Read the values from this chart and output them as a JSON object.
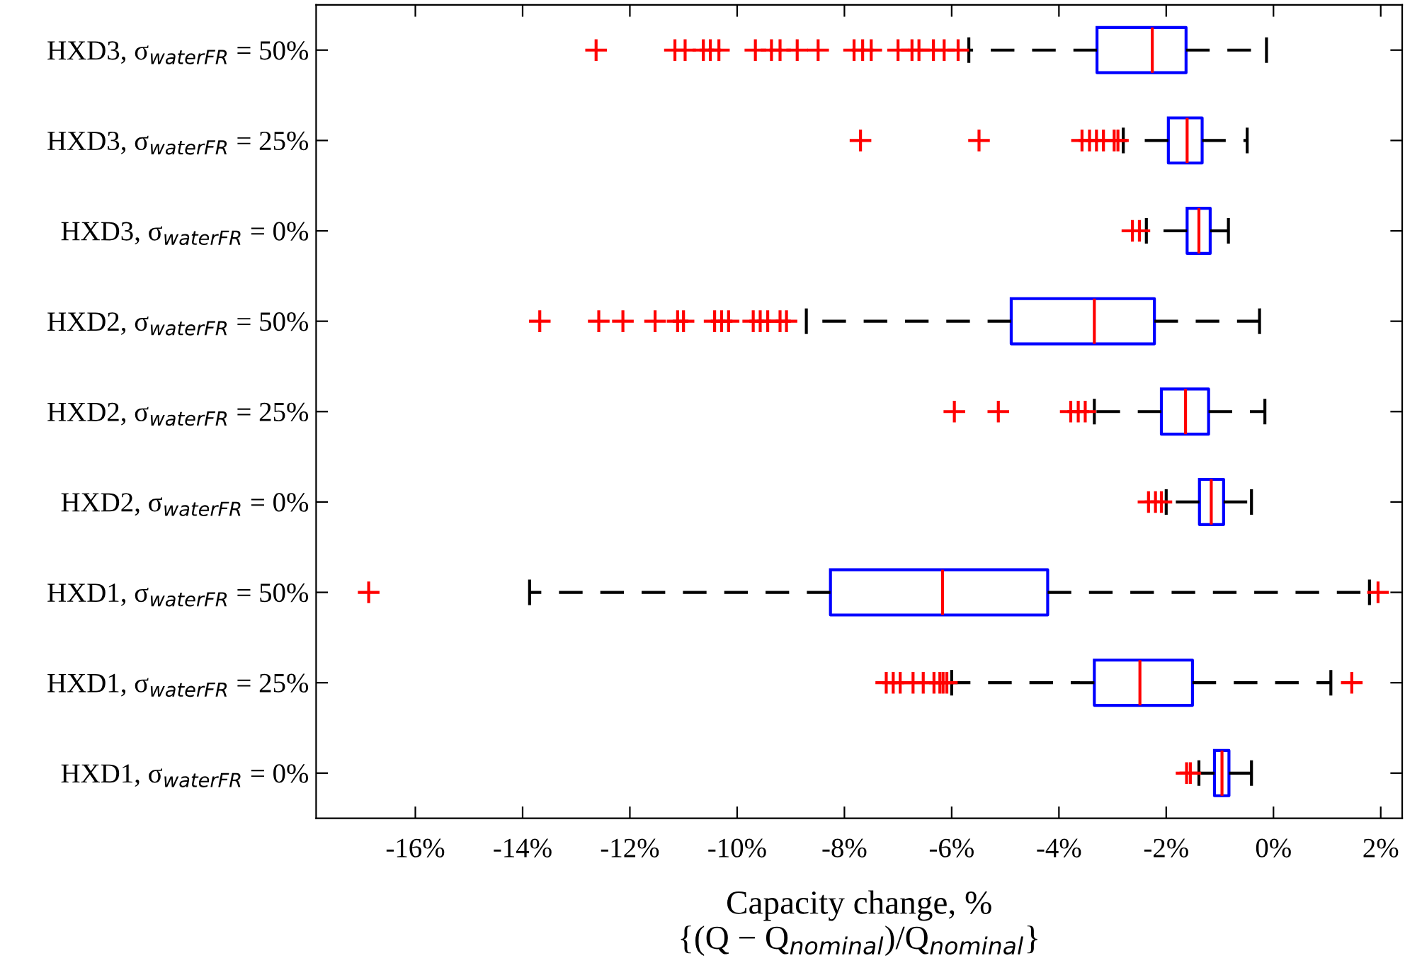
{
  "chart_data": {
    "type": "box",
    "orientation": "horizontal",
    "xlabel": "Capacity change, %\n{(Q − Q$_{nominal}$)/Q$_{nominal}$}",
    "categories": [
      "HXD3, σ$_{waterFR}$ = 50%",
      "HXD3, σ$_{waterFR}$ = 25%",
      "HXD3, σ$_{waterFR}$ = 0%",
      "HXD2, σ$_{waterFR}$ = 50%",
      "HXD2, σ$_{waterFR}$ = 25%",
      "HXD2, σ$_{waterFR}$ = 0%",
      "HXD1, σ$_{waterFR}$ = 50%",
      "HXD1, σ$_{waterFR}$ = 25%",
      "HXD1, σ$_{waterFR}$ = 0%"
    ],
    "boxes": [
      {
        "low": -5.68,
        "q1": -3.29,
        "median": -2.26,
        "q3": -1.63,
        "high": -0.13,
        "outliers": [
          -12.63,
          -11.16,
          -10.97,
          -10.63,
          -10.5,
          -10.34,
          -9.66,
          -9.36,
          -9.2,
          -8.88,
          -8.49,
          -7.82,
          -7.66,
          -7.5,
          -7.0,
          -6.74,
          -6.61,
          -6.34,
          -6.14,
          -5.88
        ]
      },
      {
        "low": -2.8,
        "q1": -1.96,
        "median": -1.61,
        "q3": -1.33,
        "high": -0.49,
        "outliers": [
          -7.7,
          -5.49,
          -3.57,
          -3.43,
          -3.3,
          -3.17,
          -2.97,
          -2.9
        ]
      },
      {
        "low": -2.37,
        "q1": -1.61,
        "median": -1.39,
        "q3": -1.18,
        "high": -0.84,
        "outliers": [
          -2.63,
          -2.5
        ]
      },
      {
        "low": -8.71,
        "q1": -4.89,
        "median": -3.34,
        "q3": -2.22,
        "high": -0.26,
        "outliers": [
          -13.68,
          -12.58,
          -12.13,
          -11.53,
          -11.11,
          -11.0,
          -10.42,
          -10.29,
          -10.16,
          -9.7,
          -9.57,
          -9.43,
          -9.2,
          -9.08
        ]
      },
      {
        "low": -3.34,
        "q1": -2.09,
        "median": -1.64,
        "q3": -1.21,
        "high": -0.16,
        "outliers": [
          -5.95,
          -5.13,
          -3.78,
          -3.64,
          -3.51
        ]
      },
      {
        "low": -2.0,
        "q1": -1.38,
        "median": -1.16,
        "q3": -0.93,
        "high": -0.41,
        "outliers": [
          -2.33,
          -2.2,
          -2.09
        ]
      },
      {
        "low": -13.87,
        "q1": -8.26,
        "median": -6.17,
        "q3": -4.21,
        "high": 1.79,
        "outliers": [
          -16.87,
          1.95
        ]
      },
      {
        "low": -6.0,
        "q1": -3.34,
        "median": -2.49,
        "q3": -1.51,
        "high": 1.07,
        "outliers": [
          -7.22,
          -7.09,
          -6.96,
          -6.72,
          -6.53,
          -6.33,
          -6.22,
          -6.16,
          -6.09,
          1.46
        ]
      },
      {
        "low": -1.39,
        "q1": -1.1,
        "median": -0.96,
        "q3": -0.83,
        "high": -0.41,
        "outliers": [
          -1.62,
          -1.55
        ]
      }
    ],
    "xlim": [
      -17.85,
      2.4
    ],
    "xticks": [
      {
        "value": -16,
        "label": "-16%"
      },
      {
        "value": -14,
        "label": "-14%"
      },
      {
        "value": -12,
        "label": "-12%"
      },
      {
        "value": -10,
        "label": "-10%"
      },
      {
        "value": -8,
        "label": "-8%"
      },
      {
        "value": -6,
        "label": "-6%"
      },
      {
        "value": -4,
        "label": "-4%"
      },
      {
        "value": -2,
        "label": "-2%"
      },
      {
        "value": 0,
        "label": "0%"
      },
      {
        "value": 2,
        "label": "2%"
      }
    ],
    "grid": false,
    "marker": "cross",
    "line_style": "dashed",
    "color": "#0000ff"
  }
}
